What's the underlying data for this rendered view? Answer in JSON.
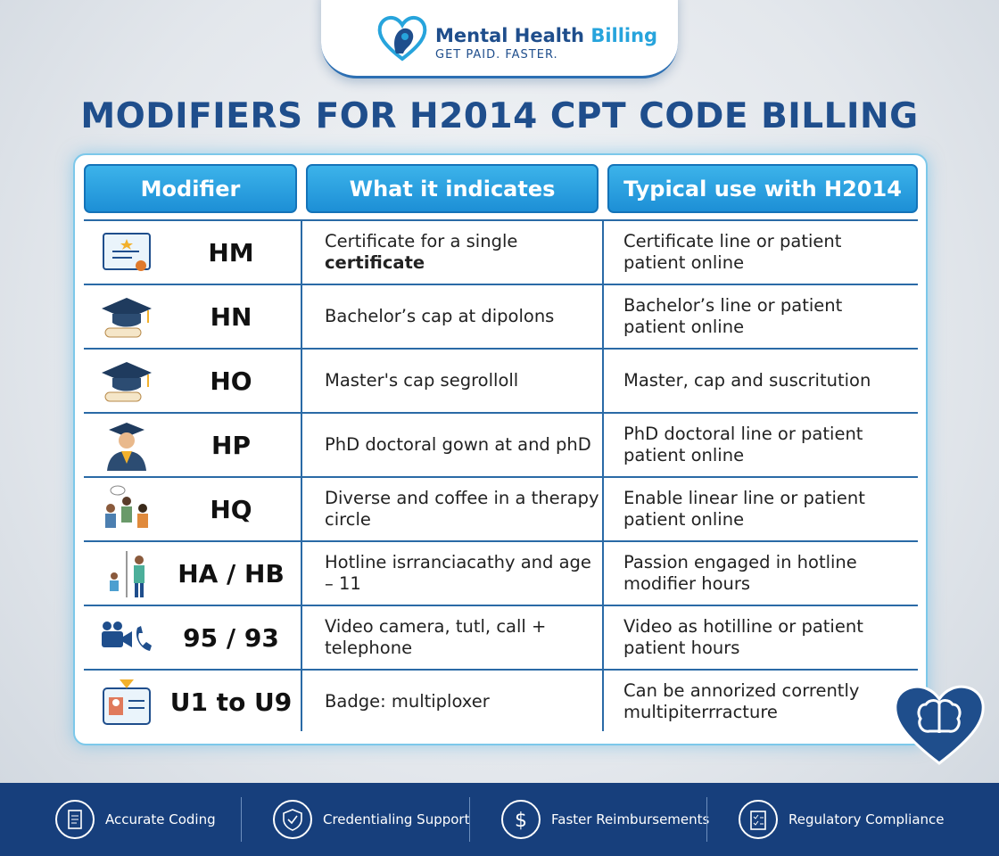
{
  "header": {
    "brand_main": "Mental Health",
    "brand_accent": "Billing",
    "tagline": "GET PAID. FASTER.",
    "title": "MODIFIERS FOR H2014 CPT CODE BILLING"
  },
  "table": {
    "headers": [
      "Modifier",
      "What it indicates",
      "Typical use with H2014"
    ],
    "rows": [
      {
        "modifier": "HM",
        "indicates": "Certificate for a single",
        "indicates_bold": "certificate",
        "use": "Certificate line or patient patient online"
      },
      {
        "modifier": "HN",
        "indicates": "Bachelor’s cap at dipolons",
        "use": "Bachelor’s line or patient patient online"
      },
      {
        "modifier": "HO",
        "indicates": "Master's cap segrolloll",
        "use": "Master, cap and suscritution"
      },
      {
        "modifier": "HP",
        "indicates": "PhD doctoral gown at and phD",
        "use": "PhD doctoral line or patient patient online"
      },
      {
        "modifier": "HQ",
        "indicates": "Diverse and coffee in a therapy circle",
        "use": "Enable linear line or patient patient online"
      },
      {
        "modifier": "HA / HB",
        "indicates": "Hotline isrranciacathy and age – 11",
        "use": "Passion engaged in hotline modifier hours"
      },
      {
        "modifier": "95 / 93",
        "indicates": "Video camera, tutl, call + telephone",
        "use": "Video as hotilline or patient patient hours"
      },
      {
        "modifier": "U1 to U9",
        "indicates": "Badge: multiploxer",
        "use": "Can be annorized corrently multipiterrracture"
      }
    ]
  },
  "footer": {
    "items": [
      "Accurate Coding",
      "Credentialing Support",
      "Faster Reimbursements",
      "Regulatory Compliance"
    ]
  }
}
